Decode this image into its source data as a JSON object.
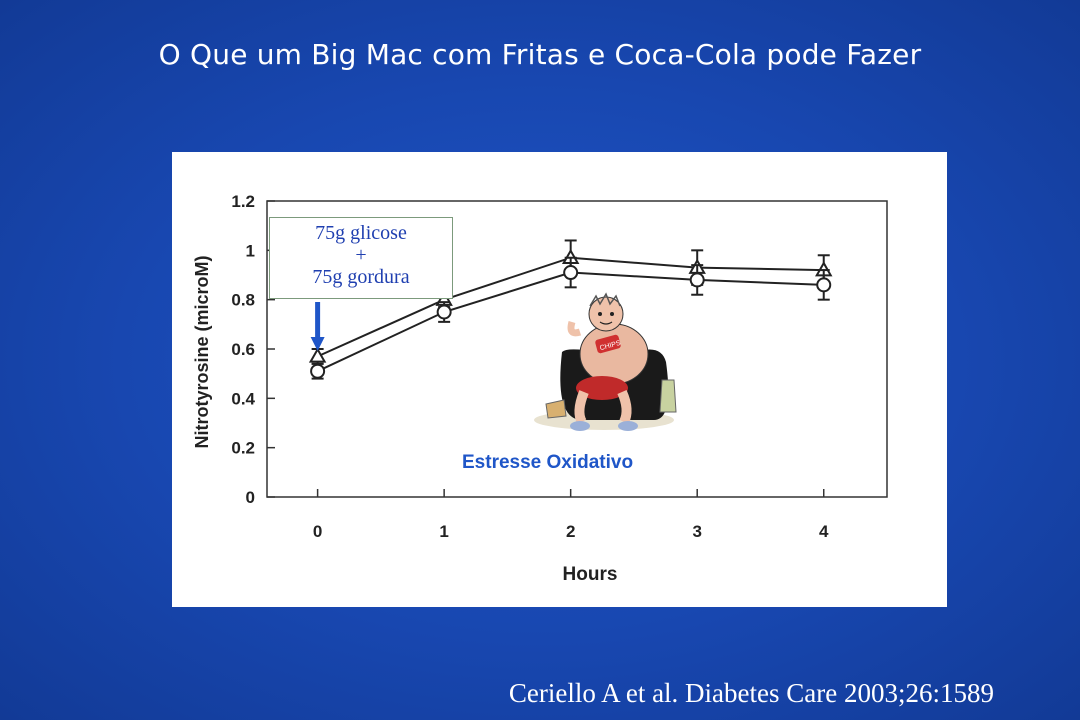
{
  "slide": {
    "title": "O Que um Big Mac com Fritas e Coca-Cola pode Fazer",
    "citation": "Ceriello A et al. Diabetes Care 2003;26:1589"
  },
  "annotations": {
    "box_line1": "75g glicose",
    "box_line2": "+",
    "box_line3": "75g gordura",
    "label": "Estresse Oxidativo",
    "arrow_color": "#1f56c8",
    "illustration": "cartoon-couch-potato-image"
  },
  "chart_data": {
    "type": "line",
    "xlabel": "Hours",
    "ylabel": "Nitrotyrosine (microM)",
    "x": [
      0,
      1,
      2,
      3,
      4
    ],
    "xlim": [
      -0.4,
      4.5
    ],
    "ylim": [
      0,
      1.2
    ],
    "yticks": [
      0,
      0.2,
      0.4,
      0.6,
      0.8,
      1,
      1.2
    ],
    "ytick_labels": [
      "0",
      "0.2",
      "0.4",
      "0.6",
      "0.8",
      "1",
      "1.2"
    ],
    "xtick_labels": [
      "0",
      "1",
      "2",
      "3",
      "4"
    ],
    "grid": false,
    "series": [
      {
        "marker": "triangle",
        "values": [
          0.57,
          0.8,
          0.97,
          0.93,
          0.92
        ],
        "error": [
          0.03,
          0.03,
          0.07,
          0.07,
          0.06
        ]
      },
      {
        "marker": "circle",
        "values": [
          0.51,
          0.75,
          0.91,
          0.88,
          0.86
        ],
        "error": [
          0.03,
          0.04,
          0.06,
          0.06,
          0.06
        ]
      }
    ]
  }
}
